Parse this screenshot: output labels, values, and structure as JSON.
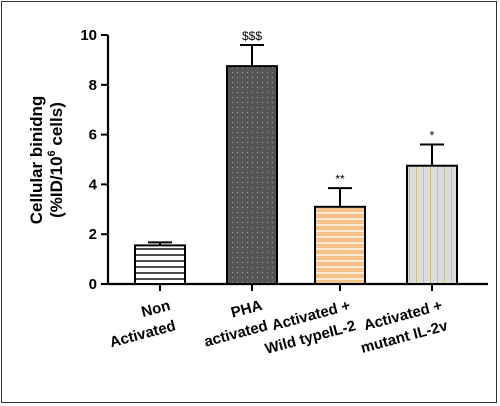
{
  "chart_data": {
    "type": "bar",
    "categories": [
      [
        "Non",
        "Activated"
      ],
      [
        "PHA",
        "activated"
      ],
      [
        "Activated +",
        "Wild typeIL-2"
      ],
      [
        "Activated +",
        "mutant IL-2v"
      ]
    ],
    "values": [
      1.55,
      8.75,
      3.1,
      4.75
    ],
    "errors": [
      0.12,
      0.85,
      0.75,
      0.85
    ],
    "significance": [
      "",
      "$$$",
      "**",
      "*"
    ],
    "bar_fills": [
      "#ffffff",
      "#555555",
      "#f5c28a",
      "#dcdcdc"
    ],
    "bar_patterns": [
      "hlines",
      "dots",
      "hlines",
      "vlines"
    ],
    "ylabel_line1": "Cellular binidng",
    "ylabel_line2_prefix": "(%ID/10",
    "ylabel_superscript": "6",
    "ylabel_line2_suffix": " cells)",
    "ylim": [
      0,
      10
    ],
    "yticks": [
      0,
      2,
      4,
      6,
      8,
      10
    ],
    "ytick_labels": [
      "0",
      "2",
      "4",
      "6",
      "8",
      "10"
    ],
    "grid": false
  }
}
